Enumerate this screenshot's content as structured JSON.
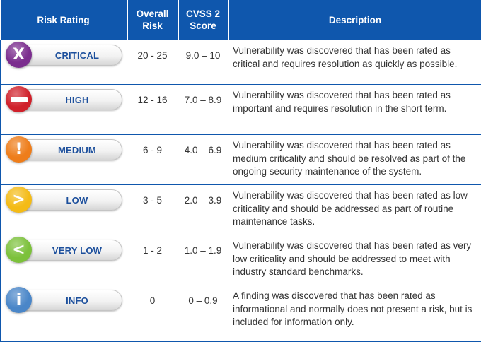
{
  "header": {
    "risk_rating": "Risk Rating",
    "overall_risk": [
      "Overall",
      "Risk"
    ],
    "cvss_score": [
      "CVSS 2",
      "Score"
    ],
    "description": "Description"
  },
  "rows": [
    {
      "label": "CRITICAL",
      "icon": "x-icon",
      "glyph": "X",
      "color": "#7b2d8e",
      "overall_risk": "20 - 25",
      "cvss": "9.0 – 10",
      "description": "Vulnerability was discovered that has been rated as critical and requires resolution as quickly as possible."
    },
    {
      "label": "HIGH",
      "icon": "minus-icon",
      "glyph": "—",
      "color": "#d0202a",
      "overall_risk": "12 - 16",
      "cvss": "7.0 – 8.9",
      "description": "Vulnerability was discovered that has been rated as important and requires resolution in the short term."
    },
    {
      "label": "MEDIUM",
      "icon": "exclamation-icon",
      "glyph": "!",
      "color": "#ee7d1a",
      "overall_risk": "6 - 9",
      "cvss": "4.0 – 6.9",
      "description": "Vulnerability was discovered that has been rated as medium criticality and should be resolved as part of the ongoing security maintenance of the system."
    },
    {
      "label": "LOW",
      "icon": "greater-than-icon",
      "glyph": ">",
      "color": "#f4bb16",
      "overall_risk": "3 - 5",
      "cvss": "2.0 – 3.9",
      "description": "Vulnerability was discovered that has been rated as low criticality and should be addressed as part of routine maintenance tasks."
    },
    {
      "label": "VERY LOW",
      "icon": "less-than-icon",
      "glyph": "<",
      "color": "#7cc13b",
      "overall_risk": "1 - 2",
      "cvss": "1.0 – 1.9",
      "description": "Vulnerability was discovered that has been rated as very low criticality and should be addressed to meet with industry standard benchmarks."
    },
    {
      "label": "INFO",
      "icon": "info-icon",
      "glyph": "i",
      "color": "#4a86c8",
      "overall_risk": "0",
      "cvss": "0 – 0.9",
      "description": "A finding was discovered that has been rated as informational and normally does not present a risk, but is included for information only."
    }
  ]
}
